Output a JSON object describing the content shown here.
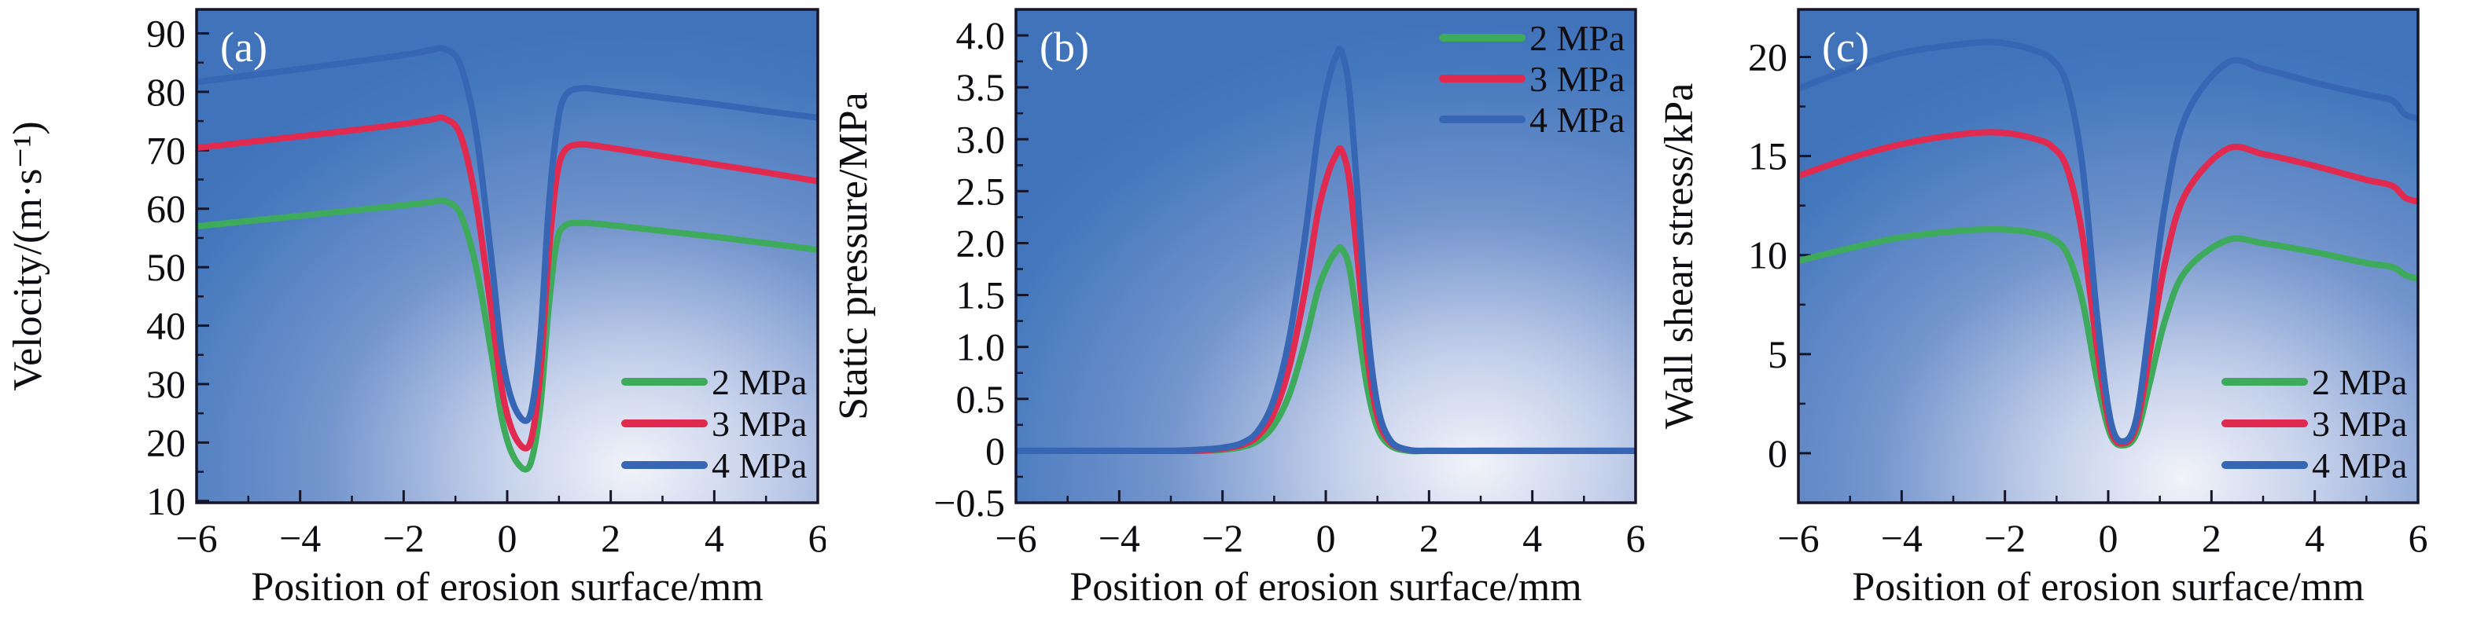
{
  "figure_title": "",
  "chart_data": [
    {
      "type": "line",
      "panel_tag": "(a)",
      "xlabel": "Position of erosion surface/mm",
      "ylabel": "Velocity/(m·s⁻¹)",
      "xlim": [
        -6,
        6
      ],
      "ylim": [
        9.7,
        94.1
      ],
      "x_ticks": [
        -6,
        -4,
        -2,
        0,
        2,
        4,
        6
      ],
      "x_tick_labels": [
        "−6",
        "−4",
        "−2",
        "0",
        "2",
        "4",
        "6"
      ],
      "x_minor_step": 1,
      "y_ticks": [
        10,
        20,
        30,
        40,
        50,
        60,
        70,
        80,
        90
      ],
      "y_tick_labels": [
        "10",
        "20",
        "30",
        "40",
        "50",
        "60",
        "70",
        "80",
        "90"
      ],
      "y_minor_step": 5,
      "grid": false,
      "legend_position": "bottom-right",
      "bg_center": [
        0.7,
        0.93
      ],
      "series": [
        {
          "name": "2 MPa",
          "color": "#3dab5b",
          "points": [
            [
              -6,
              57.0
            ],
            [
              -5,
              57.9
            ],
            [
              -4,
              58.8
            ],
            [
              -3,
              59.7
            ],
            [
              -2,
              60.6
            ],
            [
              -1.5,
              61.1
            ],
            [
              -1.2,
              61.3
            ],
            [
              -0.9,
              59.0
            ],
            [
              -0.6,
              50.0
            ],
            [
              -0.3,
              35.0
            ],
            [
              -0.1,
              24.0
            ],
            [
              0.1,
              18.0
            ],
            [
              0.35,
              15.4
            ],
            [
              0.5,
              18.0
            ],
            [
              0.65,
              27.0
            ],
            [
              0.8,
              43.0
            ],
            [
              0.95,
              54.0
            ],
            [
              1.1,
              57.0
            ],
            [
              1.4,
              57.6
            ],
            [
              2,
              57.2
            ],
            [
              3,
              56.2
            ],
            [
              4,
              55.2
            ],
            [
              5,
              54.1
            ],
            [
              6,
              53.0
            ]
          ]
        },
        {
          "name": "3 MPa",
          "color": "#e02a50",
          "points": [
            [
              -6,
              70.4
            ],
            [
              -5,
              71.4
            ],
            [
              -4,
              72.4
            ],
            [
              -3,
              73.4
            ],
            [
              -2,
              74.5
            ],
            [
              -1.5,
              75.2
            ],
            [
              -1.2,
              75.4
            ],
            [
              -0.9,
              72.5
            ],
            [
              -0.6,
              61.0
            ],
            [
              -0.3,
              42.0
            ],
            [
              -0.1,
              29.0
            ],
            [
              0.1,
              22.0
            ],
            [
              0.35,
              19.0
            ],
            [
              0.5,
              22.0
            ],
            [
              0.65,
              33.0
            ],
            [
              0.8,
              52.0
            ],
            [
              0.95,
              65.0
            ],
            [
              1.1,
              69.8
            ],
            [
              1.4,
              71.0
            ],
            [
              2,
              70.4
            ],
            [
              3,
              69.0
            ],
            [
              4,
              67.6
            ],
            [
              5,
              66.2
            ],
            [
              6,
              64.7
            ]
          ]
        },
        {
          "name": "4 MPa",
          "color": "#3766b4",
          "points": [
            [
              -6,
              81.7
            ],
            [
              -5,
              82.8
            ],
            [
              -4,
              83.9
            ],
            [
              -3,
              85.1
            ],
            [
              -2,
              86.3
            ],
            [
              -1.5,
              87.1
            ],
            [
              -1.2,
              87.3
            ],
            [
              -0.9,
              84.5
            ],
            [
              -0.6,
              73.0
            ],
            [
              -0.3,
              51.0
            ],
            [
              -0.1,
              35.0
            ],
            [
              0.1,
              27.0
            ],
            [
              0.35,
              23.7
            ],
            [
              0.5,
              27.0
            ],
            [
              0.65,
              39.0
            ],
            [
              0.8,
              60.0
            ],
            [
              0.95,
              73.0
            ],
            [
              1.1,
              79.0
            ],
            [
              1.4,
              80.6
            ],
            [
              2,
              80.1
            ],
            [
              3,
              79.0
            ],
            [
              4,
              77.9
            ],
            [
              5,
              76.7
            ],
            [
              6,
              75.6
            ]
          ]
        }
      ]
    },
    {
      "type": "line",
      "panel_tag": "(b)",
      "xlabel": "Position of erosion surface/mm",
      "ylabel": "Static pressure/MPa",
      "xlim": [
        -6,
        6
      ],
      "ylim": [
        -0.5,
        4.25
      ],
      "x_ticks": [
        -6,
        -4,
        -2,
        0,
        2,
        4,
        6
      ],
      "x_tick_labels": [
        "−6",
        "−4",
        "−2",
        "0",
        "2",
        "4",
        "6"
      ],
      "x_minor_step": 1,
      "y_ticks": [
        -0.5,
        0,
        0.5,
        1.0,
        1.5,
        2.0,
        2.5,
        3.0,
        3.5,
        4.0
      ],
      "y_tick_labels": [
        "−0.5",
        "0",
        "0.5",
        "1.0",
        "1.5",
        "2.0",
        "2.5",
        "3.0",
        "3.5",
        "4.0"
      ],
      "y_minor_step": 0.25,
      "grid": false,
      "legend_position": "top-right",
      "bg_center": [
        0.74,
        0.92
      ],
      "series": [
        {
          "name": "2 MPa",
          "color": "#3dab5b",
          "points": [
            [
              -6,
              0
            ],
            [
              -5,
              0
            ],
            [
              -4,
              0
            ],
            [
              -3,
              0
            ],
            [
              -2.5,
              0
            ],
            [
              -2,
              0.01
            ],
            [
              -1.6,
              0.04
            ],
            [
              -1.3,
              0.1
            ],
            [
              -1.0,
              0.25
            ],
            [
              -0.7,
              0.55
            ],
            [
              -0.4,
              1.05
            ],
            [
              -0.15,
              1.55
            ],
            [
              0.05,
              1.8
            ],
            [
              0.2,
              1.92
            ],
            [
              0.3,
              1.95
            ],
            [
              0.45,
              1.78
            ],
            [
              0.6,
              1.3
            ],
            [
              0.8,
              0.62
            ],
            [
              1.0,
              0.22
            ],
            [
              1.25,
              0.05
            ],
            [
              1.6,
              0
            ],
            [
              2,
              0
            ],
            [
              3,
              0
            ],
            [
              4,
              0
            ],
            [
              5,
              0
            ],
            [
              6,
              0
            ]
          ]
        },
        {
          "name": "3 MPa",
          "color": "#e02a50",
          "points": [
            [
              -6,
              0
            ],
            [
              -5,
              0
            ],
            [
              -4,
              0
            ],
            [
              -3,
              0
            ],
            [
              -2.5,
              0
            ],
            [
              -2,
              0.02
            ],
            [
              -1.6,
              0.06
            ],
            [
              -1.3,
              0.15
            ],
            [
              -1.0,
              0.37
            ],
            [
              -0.7,
              0.82
            ],
            [
              -0.4,
              1.55
            ],
            [
              -0.15,
              2.3
            ],
            [
              0.05,
              2.68
            ],
            [
              0.2,
              2.85
            ],
            [
              0.3,
              2.9
            ],
            [
              0.45,
              2.63
            ],
            [
              0.6,
              1.93
            ],
            [
              0.8,
              0.93
            ],
            [
              1.0,
              0.33
            ],
            [
              1.25,
              0.08
            ],
            [
              1.6,
              0.01
            ],
            [
              2,
              0
            ],
            [
              3,
              0
            ],
            [
              4,
              0
            ],
            [
              5,
              0
            ],
            [
              6,
              0
            ]
          ]
        },
        {
          "name": "4 MPa",
          "color": "#3766b4",
          "points": [
            [
              -6,
              0
            ],
            [
              -5,
              0
            ],
            [
              -4,
              0
            ],
            [
              -3,
              0
            ],
            [
              -2.5,
              0.01
            ],
            [
              -2,
              0.03
            ],
            [
              -1.6,
              0.08
            ],
            [
              -1.3,
              0.2
            ],
            [
              -1.0,
              0.5
            ],
            [
              -0.7,
              1.1
            ],
            [
              -0.4,
              2.07
            ],
            [
              -0.15,
              3.05
            ],
            [
              0.05,
              3.57
            ],
            [
              0.2,
              3.8
            ],
            [
              0.3,
              3.85
            ],
            [
              0.45,
              3.5
            ],
            [
              0.6,
              2.57
            ],
            [
              0.8,
              1.23
            ],
            [
              1.0,
              0.44
            ],
            [
              1.25,
              0.1
            ],
            [
              1.6,
              0.01
            ],
            [
              2,
              0
            ],
            [
              3,
              0
            ],
            [
              4,
              0
            ],
            [
              5,
              0
            ],
            [
              6,
              0
            ]
          ]
        }
      ]
    },
    {
      "type": "line",
      "panel_tag": "(c)",
      "xlabel": "Position of erosion surface/mm",
      "ylabel": "Wall shear stress/kPa",
      "xlim": [
        -6,
        6
      ],
      "ylim": [
        -2.5,
        22.4
      ],
      "x_ticks": [
        -6,
        -4,
        -2,
        0,
        2,
        4,
        6
      ],
      "x_tick_labels": [
        "−6",
        "−4",
        "−2",
        "0",
        "2",
        "4",
        "6"
      ],
      "x_minor_step": 1,
      "y_ticks": [
        0,
        5,
        10,
        15,
        20
      ],
      "y_tick_labels": [
        "0",
        "5",
        "10",
        "15",
        "20"
      ],
      "y_minor_step": 2.5,
      "grid": false,
      "legend_position": "bottom-right",
      "bg_center": [
        0.62,
        0.95
      ],
      "series": [
        {
          "name": "2 MPa",
          "color": "#3dab5b",
          "points": [
            [
              -6,
              9.7
            ],
            [
              -5,
              10.35
            ],
            [
              -4,
              10.9
            ],
            [
              -3,
              11.2
            ],
            [
              -2.3,
              11.3
            ],
            [
              -1.8,
              11.25
            ],
            [
              -1.4,
              11.1
            ],
            [
              -1.1,
              10.85
            ],
            [
              -0.8,
              10.1
            ],
            [
              -0.5,
              7.7
            ],
            [
              -0.2,
              3.5
            ],
            [
              0.05,
              0.9
            ],
            [
              0.3,
              0.4
            ],
            [
              0.55,
              1.0
            ],
            [
              0.8,
              3.5
            ],
            [
              1.1,
              6.7
            ],
            [
              1.5,
              9.2
            ],
            [
              2.3,
              10.75
            ],
            [
              3,
              10.6
            ],
            [
              4,
              10.15
            ],
            [
              5,
              9.6
            ],
            [
              5.5,
              9.4
            ],
            [
              5.75,
              9.0
            ],
            [
              6,
              8.8
            ]
          ]
        },
        {
          "name": "3 MPa",
          "color": "#e02a50",
          "points": [
            [
              -6,
              14.0
            ],
            [
              -5,
              14.9
            ],
            [
              -4,
              15.6
            ],
            [
              -3,
              16.05
            ],
            [
              -2.3,
              16.2
            ],
            [
              -1.8,
              16.1
            ],
            [
              -1.4,
              15.85
            ],
            [
              -1.1,
              15.5
            ],
            [
              -0.8,
              14.4
            ],
            [
              -0.5,
              11.0
            ],
            [
              -0.2,
              5.0
            ],
            [
              0.05,
              1.2
            ],
            [
              0.3,
              0.5
            ],
            [
              0.55,
              1.4
            ],
            [
              0.8,
              5.0
            ],
            [
              1.1,
              9.6
            ],
            [
              1.5,
              13.1
            ],
            [
              2.3,
              15.35
            ],
            [
              3,
              15.1
            ],
            [
              4,
              14.5
            ],
            [
              5,
              13.8
            ],
            [
              5.5,
              13.5
            ],
            [
              5.75,
              12.9
            ],
            [
              6,
              12.7
            ]
          ]
        },
        {
          "name": "4 MPa",
          "color": "#3766b4",
          "points": [
            [
              -6,
              18.4
            ],
            [
              -5,
              19.4
            ],
            [
              -4,
              20.2
            ],
            [
              -3,
              20.6
            ],
            [
              -2.3,
              20.75
            ],
            [
              -1.8,
              20.6
            ],
            [
              -1.4,
              20.3
            ],
            [
              -1.1,
              19.9
            ],
            [
              -0.8,
              18.6
            ],
            [
              -0.5,
              14.5
            ],
            [
              -0.2,
              6.5
            ],
            [
              0.05,
              1.6
            ],
            [
              0.3,
              0.6
            ],
            [
              0.55,
              1.8
            ],
            [
              0.8,
              6.5
            ],
            [
              1.1,
              12.5
            ],
            [
              1.5,
              17.0
            ],
            [
              2.3,
              19.7
            ],
            [
              3,
              19.4
            ],
            [
              4,
              18.7
            ],
            [
              5,
              18.1
            ],
            [
              5.5,
              17.8
            ],
            [
              5.75,
              17.1
            ],
            [
              6,
              16.9
            ]
          ]
        }
      ]
    }
  ],
  "style": {
    "frame_color": "#16162b",
    "text_color": "#0d0d12",
    "panel_tag_color": "#ffffff",
    "bg_gradient_stops": [
      "#f2f3fa",
      "#c3cfea",
      "#7495cd",
      "#4478bd",
      "#4073ba"
    ]
  }
}
